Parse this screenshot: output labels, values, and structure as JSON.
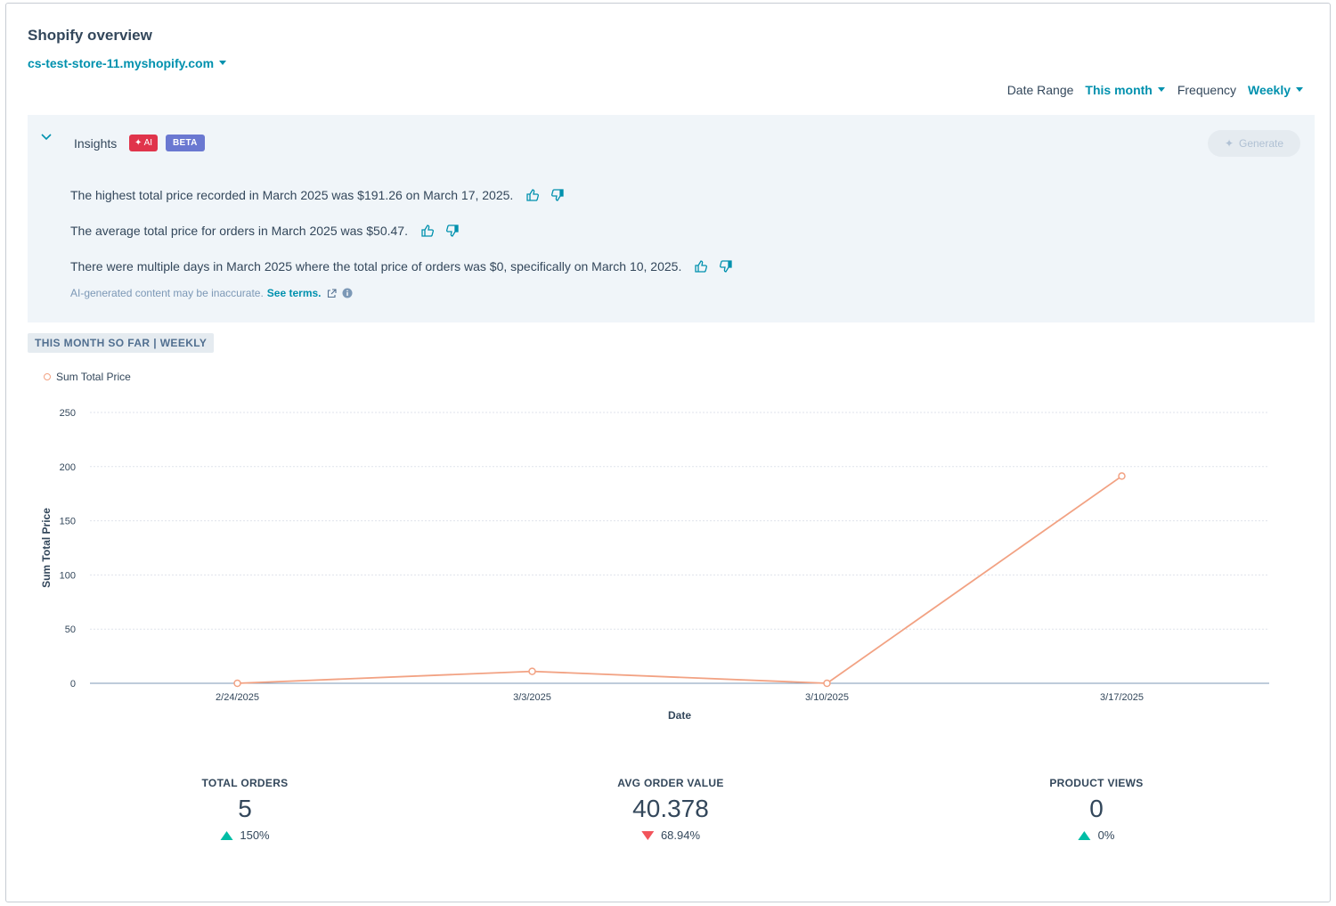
{
  "header": {
    "title": "Shopify overview",
    "store": "cs-test-store-11.myshopify.com"
  },
  "filters": {
    "date_range_label": "Date Range",
    "date_range_value": "This month",
    "frequency_label": "Frequency",
    "frequency_value": "Weekly"
  },
  "insights": {
    "title": "Insights",
    "ai_badge": "AI",
    "beta_badge": "BETA",
    "generate_label": "Generate",
    "items": [
      "The highest total price recorded in March 2025 was $191.26 on March 17, 2025.",
      "The average total price for orders in March 2025 was $50.47.",
      "There were multiple days in March 2025 where the total price of orders was $0, specifically on March 10, 2025."
    ],
    "disclaimer": "AI-generated content may be inaccurate.",
    "terms_link": "See terms."
  },
  "chart_tag": "THIS MONTH SO FAR | WEEKLY",
  "colors": {
    "accent": "#0091ae",
    "series": "#f2a283",
    "up": "#00bda5",
    "down": "#f2545b"
  },
  "chart_data": {
    "type": "line",
    "categories": [
      "2/24/2025",
      "3/3/2025",
      "3/10/2025",
      "3/17/2025"
    ],
    "series": [
      {
        "name": "Sum Total Price",
        "values": [
          0,
          11,
          0,
          191.26
        ]
      }
    ],
    "xlabel": "Date",
    "ylabel": "Sum Total Price",
    "ylim": [
      0,
      250
    ],
    "yticks": [
      0,
      50,
      100,
      150,
      200,
      250
    ],
    "grid": true,
    "legend": "top-left"
  },
  "kpis": [
    {
      "label": "TOTAL ORDERS",
      "value": "5",
      "change": "150%",
      "direction": "up"
    },
    {
      "label": "AVG ORDER VALUE",
      "value": "40.378",
      "change": "68.94%",
      "direction": "down"
    },
    {
      "label": "PRODUCT VIEWS",
      "value": "0",
      "change": "0%",
      "direction": "up"
    }
  ]
}
